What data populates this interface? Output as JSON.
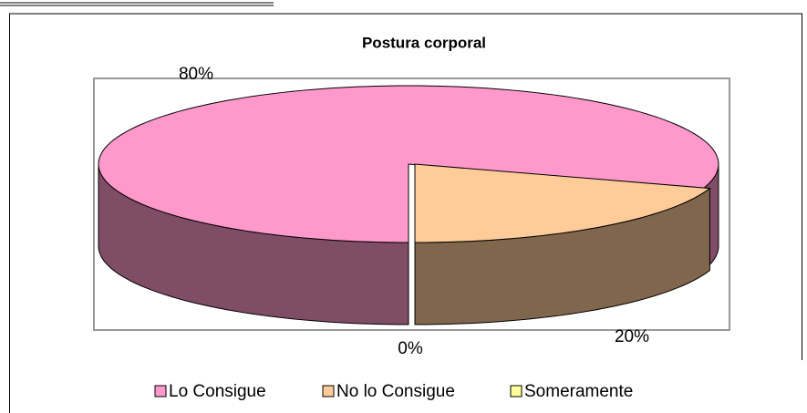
{
  "chart_data": {
    "type": "pie3d",
    "title": "Postura corporal",
    "categories": [
      "Lo Consigue",
      "No lo Consigue",
      "Someramente"
    ],
    "values": [
      80,
      20,
      0
    ],
    "value_labels": [
      "80%",
      "20%",
      "0%"
    ],
    "colors": [
      "#ff99cc",
      "#ffcc99",
      "#ffff99"
    ],
    "legend": "bottom"
  }
}
